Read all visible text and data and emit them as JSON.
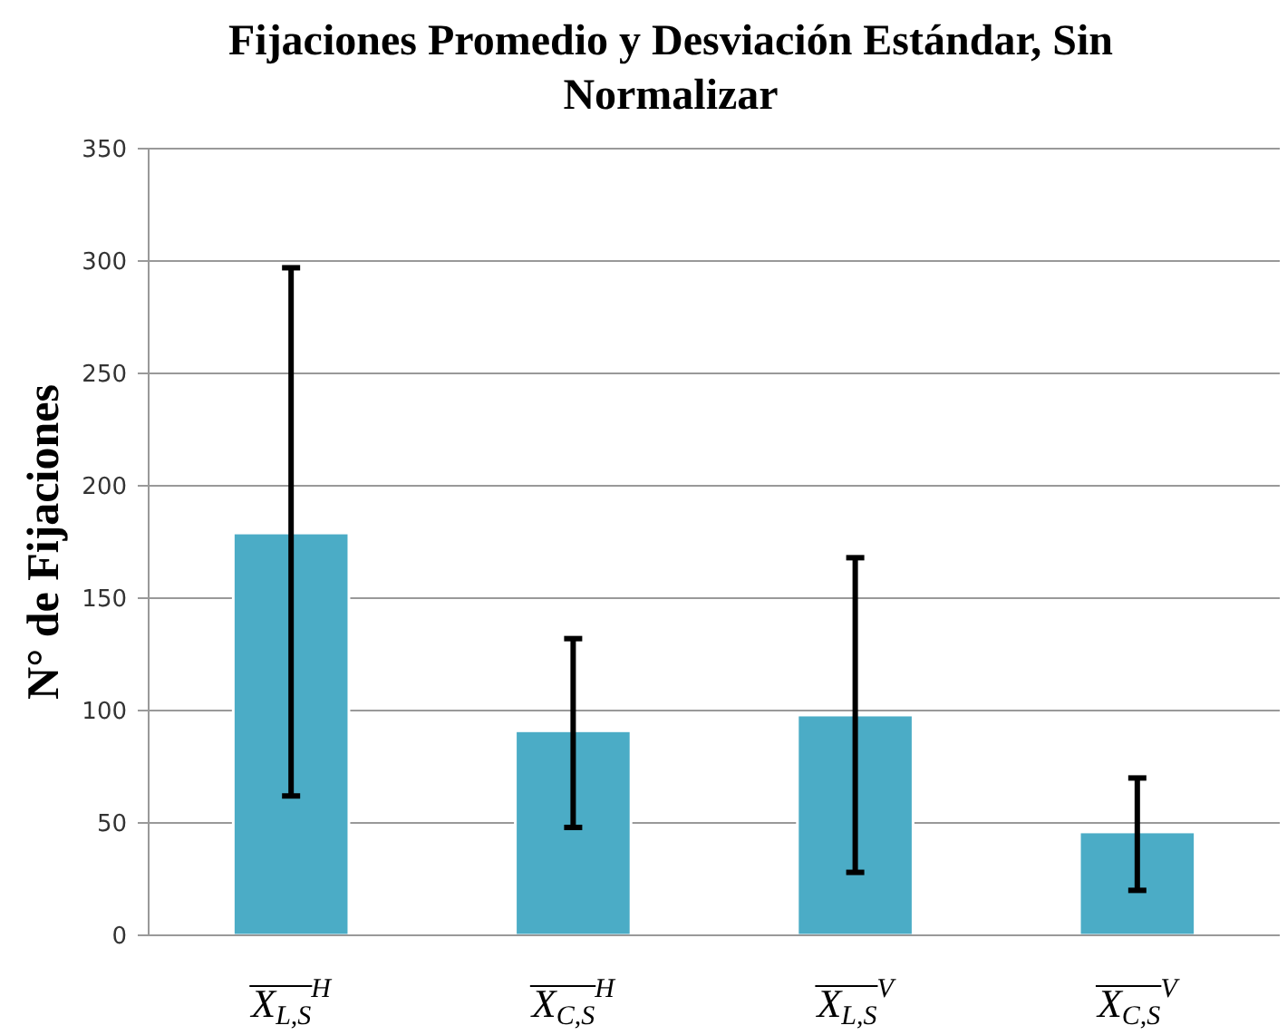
{
  "chart_data": {
    "type": "bar",
    "title": "Fijaciones Promedio y Desviación Estándar, Sin Normalizar",
    "ylabel": "N° de Fijaciones",
    "categories": [
      "X$_{L,S}$$^{H}$",
      "X$_{C,S}$$^{H}$",
      "X$_{L,S}$$^{V}$",
      "X$_{C,S}$$^{V}$"
    ],
    "values": [
      179,
      91,
      98,
      46
    ],
    "errors": [
      [
        62,
        297
      ],
      [
        48,
        132
      ],
      [
        28,
        168
      ],
      [
        20,
        70
      ]
    ],
    "color": "#4bacc6",
    "ylim": [
      0,
      350
    ],
    "yticks": [
      0,
      50,
      100,
      150,
      200,
      250,
      300,
      350
    ],
    "grid": "y"
  }
}
